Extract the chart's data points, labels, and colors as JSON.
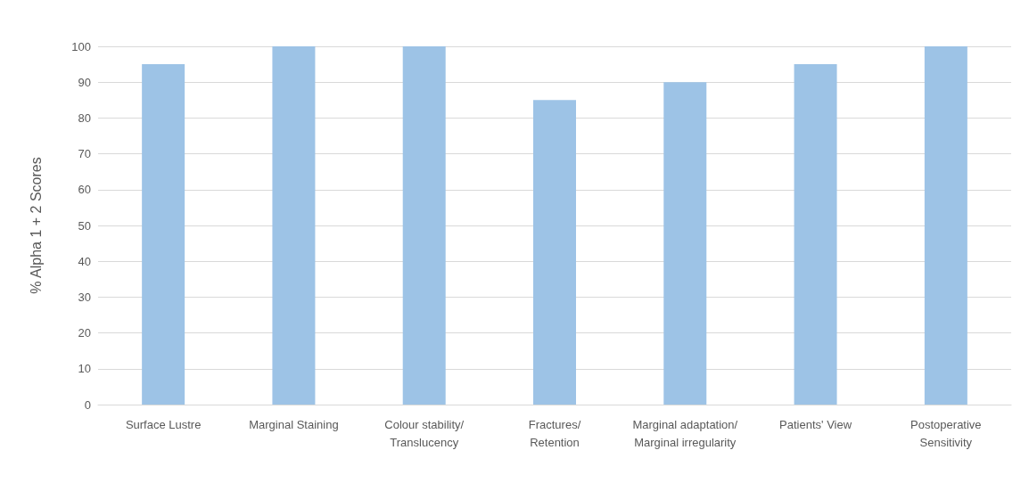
{
  "chart_data": {
    "type": "bar",
    "ylabel": "% Alpha 1 + 2 Scores",
    "categories": [
      "Surface Lustre",
      "Marginal Staining",
      "Colour stability/\nTranslucency",
      "Fractures/\nRetention",
      "Marginal adaptation/\nMarginal irregularity",
      "Patients' View",
      "Postoperative\nSensitivity"
    ],
    "values": [
      95,
      100,
      100,
      85,
      90,
      95,
      100
    ],
    "color": "#9dc3e6",
    "ylim": [
      0,
      100
    ],
    "yticks": [
      0,
      10,
      20,
      30,
      40,
      50,
      60,
      70,
      80,
      90,
      100
    ],
    "grid": "y"
  }
}
